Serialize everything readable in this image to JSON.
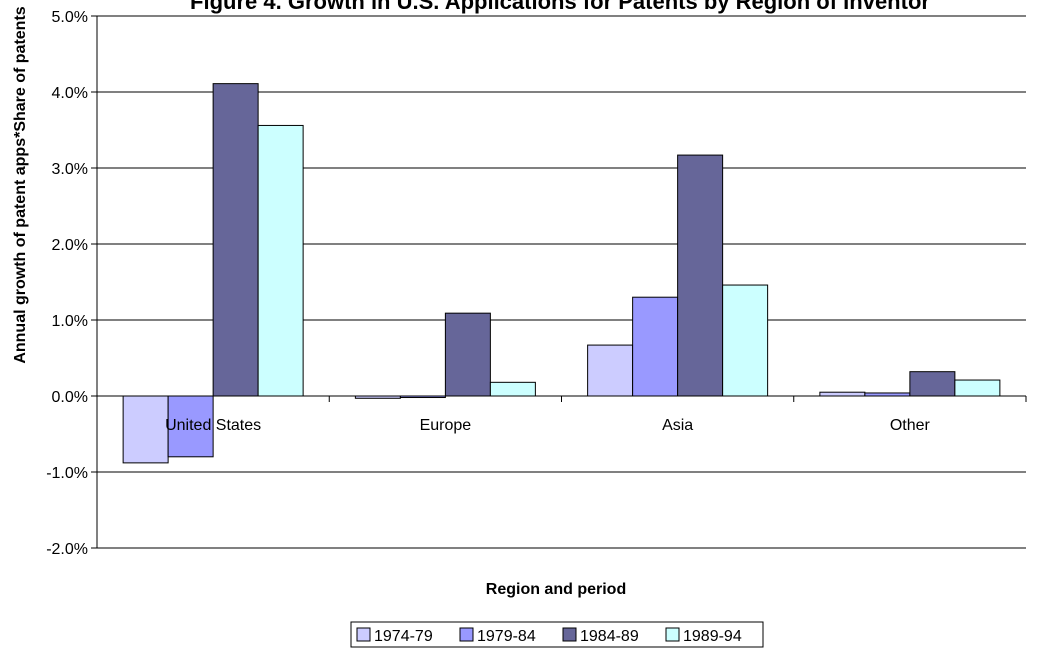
{
  "chart_data": {
    "type": "bar",
    "title": "Figure 4. Growth in U.S. Applications for Patents by Region of Inventor",
    "xlabel": "Region and period",
    "ylabel": "Annual growth of patent apps*Share of patents",
    "categories": [
      "United States",
      "Europe",
      "Asia",
      "Other"
    ],
    "yticks": [
      "-2.0%",
      "-1.0%",
      "0.0%",
      "1.0%",
      "2.0%",
      "3.0%",
      "4.0%",
      "5.0%"
    ],
    "ylim": [
      -2.0,
      5.0
    ],
    "unit": "%",
    "grid": true,
    "legend_position": "bottom",
    "series": [
      {
        "name": "1974-79",
        "color": "#ccccff",
        "values": [
          -0.88,
          -0.03,
          0.67,
          0.05
        ]
      },
      {
        "name": "1979-84",
        "color": "#9999ff",
        "values": [
          -0.8,
          -0.02,
          1.3,
          0.04
        ]
      },
      {
        "name": "1984-89",
        "color": "#666699",
        "values": [
          4.11,
          1.09,
          3.17,
          0.32
        ]
      },
      {
        "name": "1989-94",
        "color": "#ccffff",
        "values": [
          3.56,
          0.18,
          1.46,
          0.21
        ]
      }
    ]
  }
}
